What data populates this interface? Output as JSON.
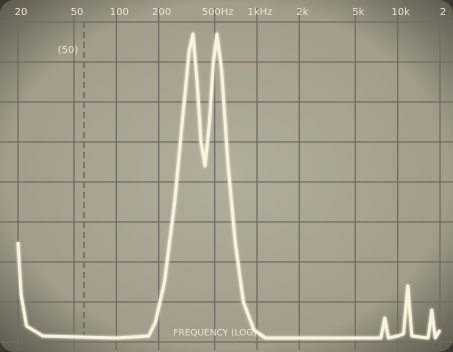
{
  "chart_data": {
    "type": "line",
    "xlabel": "FREQUENCY (LOG)",
    "annotations": [
      "(50)"
    ],
    "xscale": "log",
    "xlim": [
      20,
      20000
    ],
    "xticks": [
      20,
      50,
      100,
      200,
      {
        "value": 500,
        "label": "500Hz"
      },
      {
        "value": 1000,
        "label": "1kHz"
      },
      {
        "value": 2000,
        "label": "2k"
      },
      {
        "value": 5000,
        "label": "5k"
      },
      {
        "value": 10000,
        "label": "10k"
      },
      {
        "value": 20000,
        "label": "2"
      }
    ],
    "ylim": [
      0,
      8
    ],
    "yticks": [
      0,
      1,
      2,
      3,
      4,
      5,
      6,
      7,
      8
    ],
    "grid": true,
    "color": "#f7f3de",
    "x": [
      20,
      21,
      23,
      30,
      100,
      170,
      190,
      220,
      260,
      300,
      330,
      351,
      375,
      400,
      427,
      460,
      490,
      519,
      560,
      620,
      700,
      800,
      950,
      1150,
      5000,
      7600,
      8100,
      8600,
      10000,
      11000,
      11800,
      12600,
      16500,
      17500,
      18500,
      20000
    ],
    "values": [
      2.5,
      1.2,
      0.4,
      0.15,
      0.1,
      0.15,
      0.5,
      1.5,
      3.5,
      5.8,
      7.3,
      7.7,
      6.5,
      5.0,
      4.4,
      5.5,
      7.0,
      7.7,
      6.8,
      4.5,
      2.5,
      1.0,
      0.3,
      0.1,
      0.1,
      0.1,
      0.6,
      0.1,
      0.15,
      0.2,
      1.4,
      0.15,
      0.1,
      0.8,
      0.1,
      0.3
    ]
  }
}
